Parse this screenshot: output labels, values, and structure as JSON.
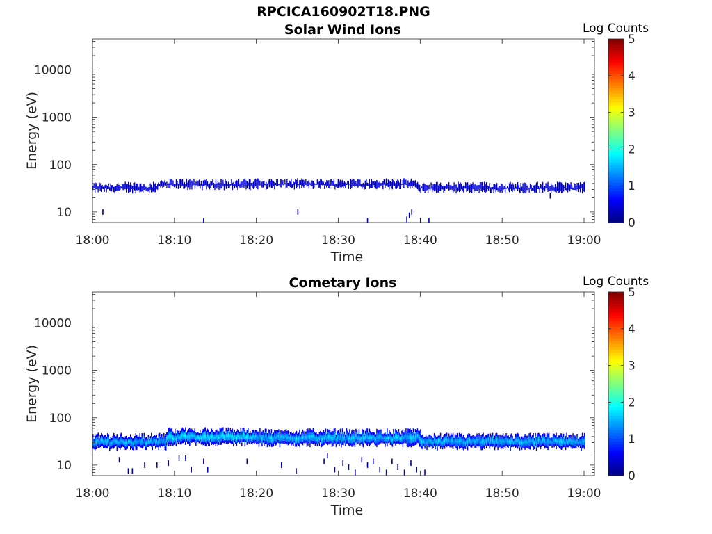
{
  "figure": {
    "title": "RPCICA160902T18.PNG"
  },
  "chart_data": [
    {
      "type": "heatmap",
      "title": "Solar Wind Ions",
      "xlabel": "Time",
      "ylabel": "Energy (eV)",
      "xlim": [
        "18:00",
        "19:00"
      ],
      "ylim": [
        6,
        45000
      ],
      "yscale": "log",
      "x_ticks": [
        "18:00",
        "18:10",
        "18:20",
        "18:30",
        "18:40",
        "18:50",
        "19:00"
      ],
      "y_ticks": [
        "10",
        "100",
        "1000",
        "10000"
      ],
      "colorbar": {
        "label": "Log Counts",
        "range": [
          0,
          5
        ],
        "ticks": [
          "0",
          "1",
          "2",
          "3",
          "4",
          "5"
        ],
        "colormap": "jet"
      },
      "grid": false,
      "band_segments": [
        {
          "start_min": 0,
          "end_min": 8,
          "energy_low_eV": 28,
          "energy_high_eV": 38,
          "log_counts": 0.3
        },
        {
          "start_min": 8,
          "end_min": 20,
          "energy_low_eV": 33,
          "energy_high_eV": 45,
          "log_counts": 0.3
        },
        {
          "start_min": 20,
          "end_min": 39.5,
          "energy_low_eV": 34,
          "energy_high_eV": 45,
          "log_counts": 0.3
        },
        {
          "start_min": 39.5,
          "end_min": 60,
          "energy_low_eV": 28,
          "energy_high_eV": 38,
          "log_counts": 0.3
        }
      ],
      "sparse_events": [
        {
          "time_min": 1.2,
          "energy_eV": 10,
          "log_counts": 0.2
        },
        {
          "time_min": 13.5,
          "energy_eV": 6.5,
          "log_counts": 0.2
        },
        {
          "time_min": 25,
          "energy_eV": 10,
          "log_counts": 0.2
        },
        {
          "time_min": 33.5,
          "energy_eV": 6.5,
          "log_counts": 0.2
        },
        {
          "time_min": 38.3,
          "energy_eV": 7,
          "log_counts": 0.2
        },
        {
          "time_min": 38.6,
          "energy_eV": 8.5,
          "log_counts": 0.2
        },
        {
          "time_min": 38.9,
          "energy_eV": 10,
          "log_counts": 0.2
        },
        {
          "time_min": 40,
          "energy_eV": 6.5,
          "log_counts": 0.2
        },
        {
          "time_min": 41,
          "energy_eV": 6.5,
          "log_counts": 0.2
        },
        {
          "time_min": 55.8,
          "energy_eV": 22,
          "log_counts": 0.2
        }
      ]
    },
    {
      "type": "heatmap",
      "title": "Cometary Ions",
      "xlabel": "Time",
      "ylabel": "Energy (eV)",
      "xlim": [
        "18:00",
        "19:00"
      ],
      "ylim": [
        6,
        45000
      ],
      "yscale": "log",
      "x_ticks": [
        "18:00",
        "18:10",
        "18:20",
        "18:30",
        "18:40",
        "18:50",
        "19:00"
      ],
      "y_ticks": [
        "10",
        "100",
        "1000",
        "10000"
      ],
      "colorbar": {
        "label": "Log Counts",
        "range": [
          0,
          5
        ],
        "ticks": [
          "0",
          "1",
          "2",
          "3",
          "4",
          "5"
        ],
        "colormap": "jet"
      },
      "grid": false,
      "band_segments": [
        {
          "start_min": 0,
          "end_min": 9,
          "energy_low_eV": 23,
          "energy_high_eV": 42,
          "log_counts": 1.2
        },
        {
          "start_min": 9,
          "end_min": 20,
          "energy_low_eV": 28,
          "energy_high_eV": 55,
          "log_counts": 1.4
        },
        {
          "start_min": 20,
          "end_min": 40,
          "energy_low_eV": 27,
          "energy_high_eV": 52,
          "log_counts": 1.3
        },
        {
          "start_min": 40,
          "end_min": 60,
          "energy_low_eV": 23,
          "energy_high_eV": 42,
          "log_counts": 1.3
        }
      ],
      "sparse_events": [
        {
          "time_min": 3.2,
          "energy_eV": 13,
          "log_counts": 0.2
        },
        {
          "time_min": 4.3,
          "energy_eV": 7.5,
          "log_counts": 0.2
        },
        {
          "time_min": 4.8,
          "energy_eV": 7.5,
          "log_counts": 0.2
        },
        {
          "time_min": 6.3,
          "energy_eV": 10,
          "log_counts": 0.2
        },
        {
          "time_min": 7.8,
          "energy_eV": 10,
          "log_counts": 0.2
        },
        {
          "time_min": 9.2,
          "energy_eV": 11,
          "log_counts": 0.2
        },
        {
          "time_min": 10.5,
          "energy_eV": 14,
          "log_counts": 0.2
        },
        {
          "time_min": 11.3,
          "energy_eV": 14,
          "log_counts": 0.2
        },
        {
          "time_min": 12,
          "energy_eV": 8,
          "log_counts": 0.2
        },
        {
          "time_min": 13.5,
          "energy_eV": 12,
          "log_counts": 0.2
        },
        {
          "time_min": 14,
          "energy_eV": 8,
          "log_counts": 0.2
        },
        {
          "time_min": 18.8,
          "energy_eV": 12,
          "log_counts": 0.2
        },
        {
          "time_min": 23,
          "energy_eV": 10,
          "log_counts": 0.2
        },
        {
          "time_min": 24.8,
          "energy_eV": 7.5,
          "log_counts": 0.2
        },
        {
          "time_min": 28.2,
          "energy_eV": 12,
          "log_counts": 0.2
        },
        {
          "time_min": 28.6,
          "energy_eV": 16,
          "log_counts": 0.2
        },
        {
          "time_min": 29.5,
          "energy_eV": 8,
          "log_counts": 0.2
        },
        {
          "time_min": 30.5,
          "energy_eV": 11,
          "log_counts": 0.2
        },
        {
          "time_min": 31.2,
          "energy_eV": 9,
          "log_counts": 0.2
        },
        {
          "time_min": 32,
          "energy_eV": 7,
          "log_counts": 0.2
        },
        {
          "time_min": 32.8,
          "energy_eV": 13,
          "log_counts": 0.2
        },
        {
          "time_min": 33.5,
          "energy_eV": 10,
          "log_counts": 0.2
        },
        {
          "time_min": 34.2,
          "energy_eV": 12,
          "log_counts": 0.2
        },
        {
          "time_min": 35,
          "energy_eV": 8,
          "log_counts": 0.2
        },
        {
          "time_min": 35.8,
          "energy_eV": 7,
          "log_counts": 0.2
        },
        {
          "time_min": 36.5,
          "energy_eV": 12,
          "log_counts": 0.2
        },
        {
          "time_min": 37.2,
          "energy_eV": 9,
          "log_counts": 0.2
        },
        {
          "time_min": 38,
          "energy_eV": 7,
          "log_counts": 0.2
        },
        {
          "time_min": 38.8,
          "energy_eV": 11,
          "log_counts": 0.2
        },
        {
          "time_min": 39.5,
          "energy_eV": 8,
          "log_counts": 0.2
        },
        {
          "time_min": 40.5,
          "energy_eV": 7,
          "log_counts": 0.2
        }
      ]
    }
  ]
}
